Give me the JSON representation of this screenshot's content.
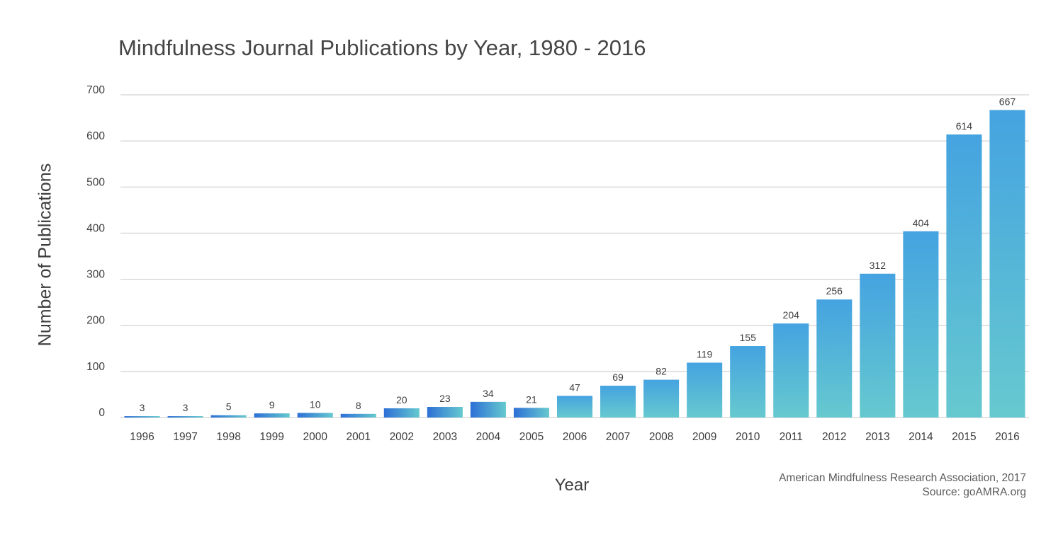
{
  "chart_data": {
    "type": "bar",
    "title": "Mindfulness Journal Publications by Year, 1980 - 2016",
    "xlabel": "Year",
    "ylabel": "Number of Publications",
    "ylim": [
      0,
      700
    ],
    "yticks": [
      0,
      100,
      200,
      300,
      400,
      500,
      600,
      700
    ],
    "grid": true,
    "categories": [
      "1996",
      "1997",
      "1998",
      "1999",
      "2000",
      "2001",
      "2002",
      "2003",
      "2004",
      "2005",
      "2006",
      "2007",
      "2008",
      "2009",
      "2010",
      "2011",
      "2012",
      "2013",
      "2014",
      "2015",
      "2016"
    ],
    "values": [
      3,
      3,
      5,
      9,
      10,
      8,
      20,
      23,
      34,
      21,
      47,
      69,
      82,
      119,
      155,
      204,
      256,
      312,
      404,
      614,
      667
    ],
    "colors": {
      "bar_top": "#45a3e0",
      "bar_bottom": "#66c9cf",
      "small_bar_left": "#2d6fd6",
      "gridline": "#c8c8c8"
    }
  },
  "credits": {
    "line1": "American Mindfulness Research Association, 2017",
    "line2": "Source: goAMRA.org"
  }
}
